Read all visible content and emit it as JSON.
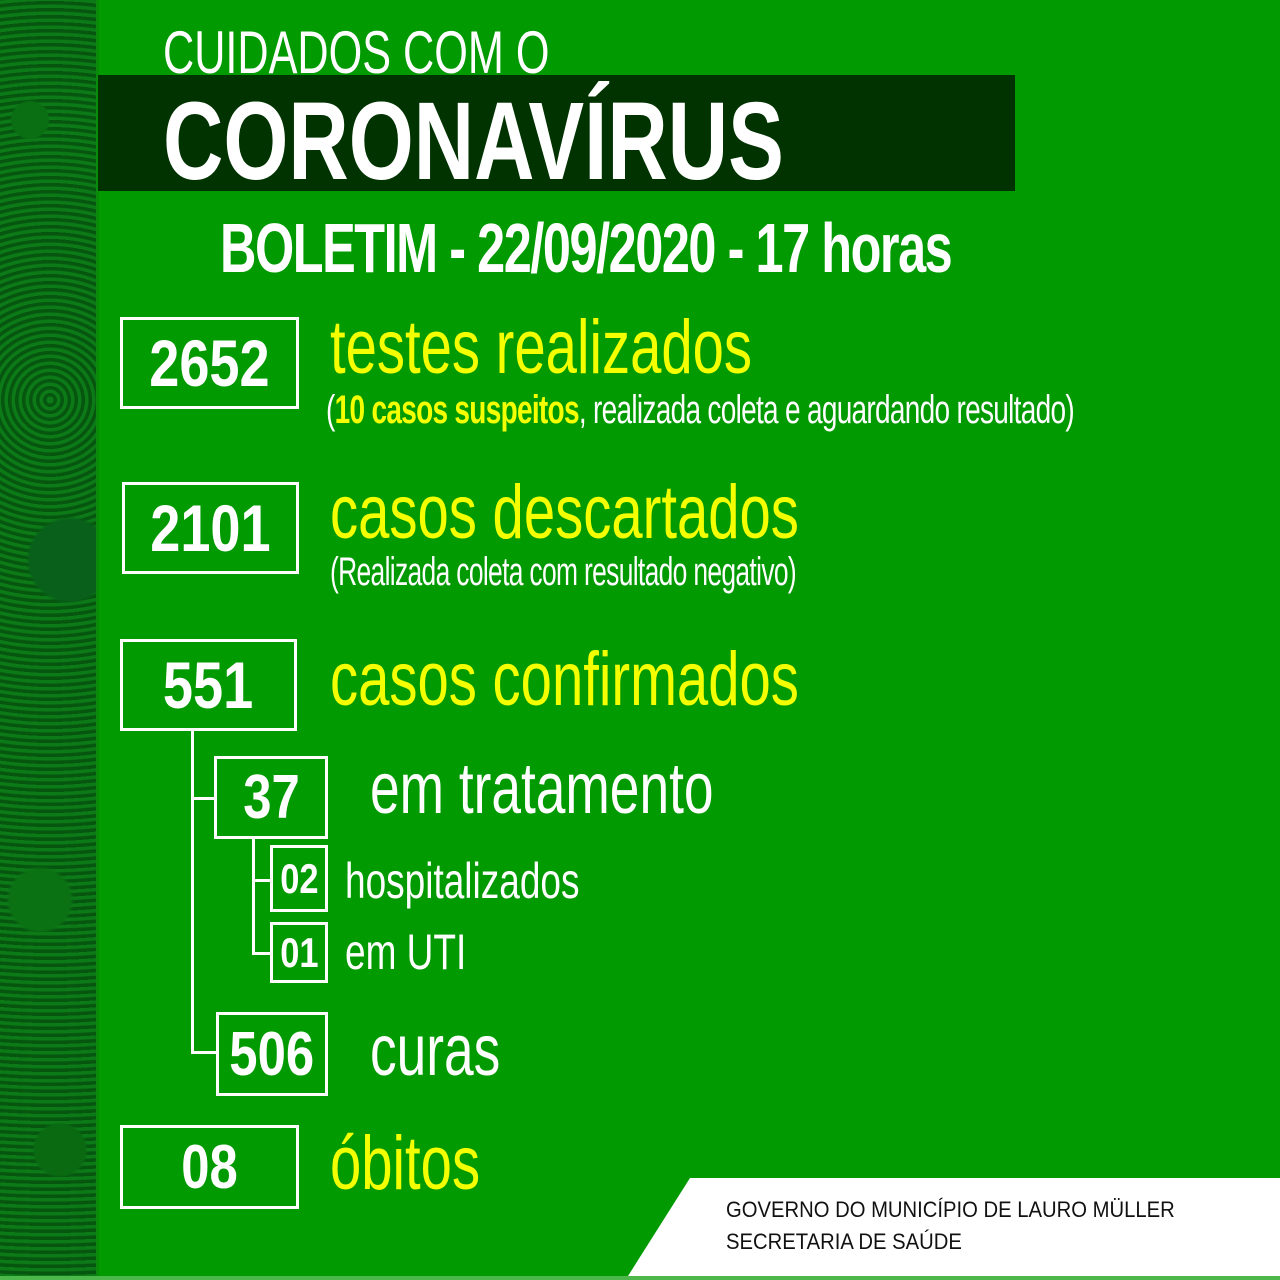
{
  "header": {
    "pretitle": "CUIDADOS COM O",
    "title": "CORONAVÍRUS",
    "bulletin": "BOLETIM  - 22/09/2020 - 17 horas"
  },
  "stats": {
    "tests": {
      "value": "2652",
      "label": "testes realizados",
      "note_open": "(",
      "note_highlight": "10 casos suspeitos",
      "note_rest": ", realizada coleta e aguardando resultado)"
    },
    "discarded": {
      "value": "2101",
      "label": "casos descartados",
      "note": "(Realizada coleta com resultado negativo)"
    },
    "confirmed": {
      "value": "551",
      "label": "casos confirmados"
    },
    "treatment": {
      "value": "37",
      "label": "em tratamento"
    },
    "hospitalized": {
      "value": "02",
      "label": "hospitalizados"
    },
    "icu": {
      "value": "01",
      "label": "em UTI"
    },
    "recovered": {
      "value": "506",
      "label": "curas"
    },
    "deaths": {
      "value": "08",
      "label": "óbitos"
    }
  },
  "footer": {
    "line1": "GOVERNO DO MUNICÍPIO DE LAURO MÜLLER",
    "line2": "SECRETARIA DE SAÚDE"
  },
  "colors": {
    "background": "#019a01",
    "bar": "#003300",
    "highlight": "#f4ff00"
  }
}
